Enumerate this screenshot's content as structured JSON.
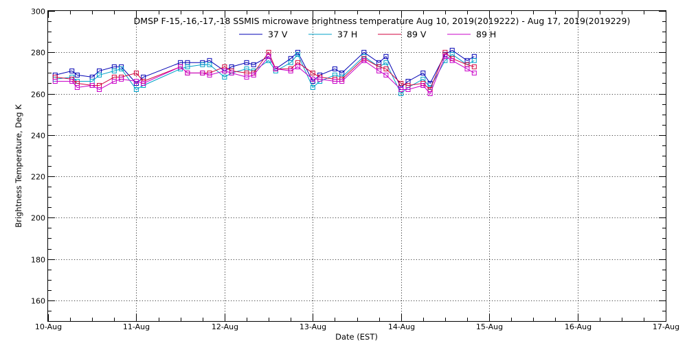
{
  "chart_data": {
    "type": "line",
    "title": "DMSP F-15,-16,-17,-18 SSMIS microwave brightness temperature Aug 10, 2019(2019222) - Aug 17, 2019(2019229)",
    "xlabel": "Date (EST)",
    "ylabel": "Brightness Temperature, Deg K",
    "xlim": [
      0,
      7
    ],
    "ylim": [
      150,
      300
    ],
    "x_tick_values": [
      0,
      1,
      2,
      3,
      4,
      5,
      6,
      7
    ],
    "x_tick_labels": [
      "10-Aug",
      "11-Aug",
      "12-Aug",
      "13-Aug",
      "14-Aug",
      "15-Aug",
      "16-Aug",
      "17-Aug"
    ],
    "y_tick_values": [
      160,
      180,
      200,
      220,
      240,
      260,
      280,
      300
    ],
    "y_tick_labels": [
      "160",
      "180",
      "200",
      "220",
      "240",
      "260",
      "280",
      "300"
    ],
    "grid": true,
    "legend_position": "top",
    "x": [
      0.08,
      0.27,
      0.33,
      0.5,
      0.58,
      0.75,
      0.83,
      1.0,
      1.08,
      1.5,
      1.58,
      1.75,
      1.83,
      2.0,
      2.08,
      2.25,
      2.33,
      2.5,
      2.58,
      2.75,
      2.83,
      3.0,
      3.08,
      3.25,
      3.33,
      3.58,
      3.75,
      3.83,
      4.0,
      4.08,
      4.25,
      4.33,
      4.5,
      4.58,
      4.75,
      4.83
    ],
    "series": [
      {
        "name": "37 V",
        "color": "#0000b4",
        "values": [
          269,
          271,
          269,
          268,
          271,
          273,
          273,
          265,
          268,
          275,
          275,
          275,
          276,
          271,
          273,
          275,
          274,
          278,
          272,
          277,
          280,
          266,
          269,
          272,
          270,
          280,
          275,
          278,
          263,
          266,
          270,
          265,
          279,
          281,
          276,
          278
        ]
      },
      {
        "name": "37 H",
        "color": "#00a0c8",
        "values": [
          267,
          268,
          266,
          266,
          269,
          271,
          272,
          262,
          264,
          272,
          273,
          274,
          274,
          268,
          270,
          272,
          271,
          276,
          271,
          275,
          279,
          263,
          266,
          269,
          268,
          278,
          273,
          275,
          260,
          263,
          267,
          263,
          276,
          279,
          274,
          276
        ]
      },
      {
        "name": "89 V",
        "color": "#d2003c",
        "values": [
          268,
          267,
          265,
          264,
          264,
          268,
          268,
          270,
          266,
          273,
          270,
          270,
          270,
          273,
          271,
          270,
          270,
          280,
          272,
          272,
          275,
          270,
          268,
          267,
          267,
          277,
          273,
          272,
          265,
          264,
          265,
          262,
          280,
          277,
          274,
          273
        ]
      },
      {
        "name": "89 H",
        "color": "#c800c8",
        "values": [
          266,
          266,
          263,
          264,
          262,
          266,
          267,
          266,
          265,
          273,
          270,
          270,
          269,
          271,
          270,
          268,
          269,
          278,
          272,
          271,
          273,
          267,
          267,
          266,
          266,
          276,
          271,
          269,
          262,
          262,
          264,
          260,
          278,
          276,
          272,
          270
        ]
      }
    ]
  }
}
